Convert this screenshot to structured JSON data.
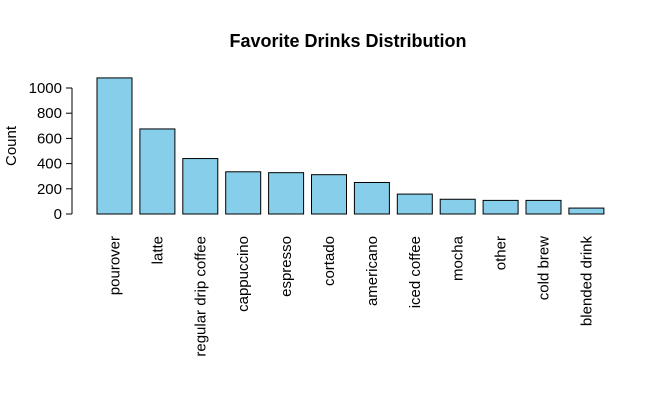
{
  "chart_data": {
    "type": "bar",
    "title": "Favorite Drinks Distribution",
    "xlabel": "",
    "ylabel": "Count",
    "categories": [
      "pourover",
      "latte",
      "regular drip coffee",
      "cappuccino",
      "espresso",
      "cortado",
      "americano",
      "iced coffee",
      "mocha",
      "other",
      "cold brew",
      "blended drink"
    ],
    "values": [
      1080,
      675,
      440,
      335,
      328,
      312,
      250,
      158,
      117,
      108,
      108,
      47
    ],
    "ylim": [
      0,
      1000
    ],
    "yticks": [
      "0",
      "200",
      "400",
      "600",
      "800",
      "1000"
    ],
    "bar_color": "#87CEEB",
    "grid": false,
    "legend": "none"
  }
}
